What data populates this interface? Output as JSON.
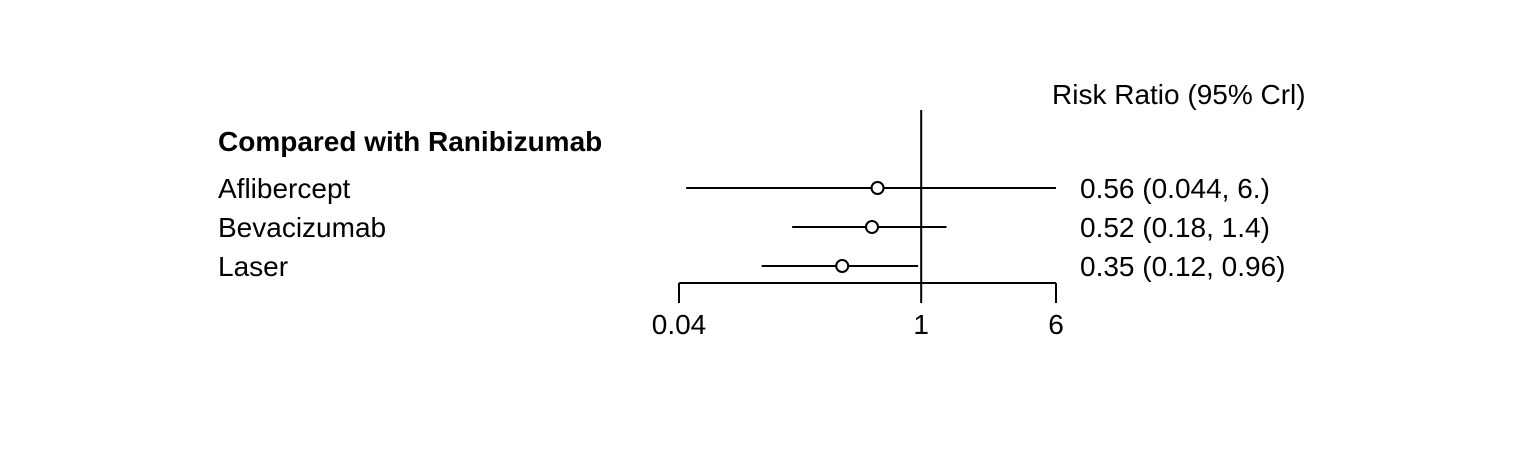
{
  "chart_data": {
    "type": "forest",
    "header_label": "Risk Ratio (95% Crl)",
    "group_label": "Compared with Ranibizumab",
    "x_scale": "log",
    "reference_line": 1,
    "xlim": [
      0.04,
      6
    ],
    "x_ticks": [
      {
        "value": 0.04,
        "label": "0.04"
      },
      {
        "value": 1,
        "label": "1"
      },
      {
        "value": 6,
        "label": "6"
      }
    ],
    "rows": [
      {
        "name": "Aflibercept",
        "estimate": 0.56,
        "lower": 0.044,
        "upper": 6.0,
        "label": "0.56 (0.044,  6.)"
      },
      {
        "name": "Bevacizumab",
        "estimate": 0.52,
        "lower": 0.18,
        "upper": 1.4,
        "label": "0.52 (0.18, 1.4)"
      },
      {
        "name": "Laser",
        "estimate": 0.35,
        "lower": 0.12,
        "upper": 0.96,
        "label": "0.35 (0.12, 0.96)"
      }
    ]
  }
}
